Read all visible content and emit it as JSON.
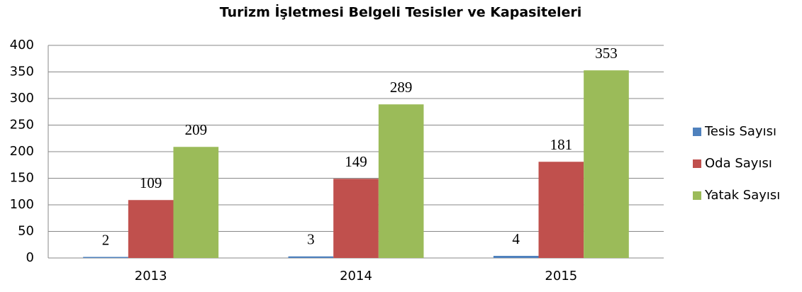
{
  "chart_data": {
    "type": "bar",
    "title": "Turizm İşletmesi Belgeli Tesisler ve Kapasiteleri",
    "categories": [
      "2013",
      "2014",
      "2015"
    ],
    "series": [
      {
        "name": "Tesis Sayısı",
        "color": "#4f81bd",
        "values": [
          2,
          3,
          4
        ]
      },
      {
        "name": "Oda Sayısı",
        "color": "#c0504d",
        "values": [
          109,
          149,
          181
        ]
      },
      {
        "name": "Yatak Sayısı",
        "color": "#9bbb59",
        "values": [
          209,
          289,
          353
        ]
      }
    ],
    "ylim": [
      0,
      400
    ],
    "yticks": [
      0,
      50,
      100,
      150,
      200,
      250,
      300,
      350,
      400
    ],
    "grid": true,
    "legend": "right"
  }
}
